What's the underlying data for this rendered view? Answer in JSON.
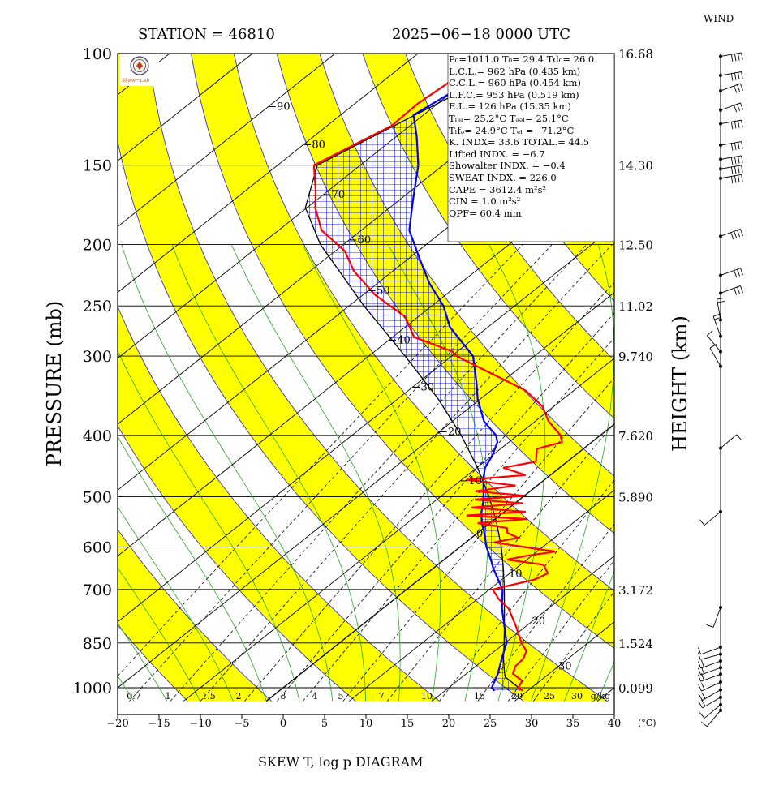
{
  "header": {
    "station": "STATION = 46810",
    "datetime": "2025−06−18 0000 UTC",
    "wind_label": "WIND",
    "bottom_title": "SKEW T, log p DIAGRAM"
  },
  "logo": {
    "text": "Skew−Lab",
    "icon": "station-seal-icon"
  },
  "info_lines": [
    {
      "id": "p0",
      "text": "P₀=1011.0 T₀= 29.4 Td₀= 26.0"
    },
    {
      "id": "lcl",
      "text": "L.C.L.= 962 hPa (0.435 km)"
    },
    {
      "id": "ccl",
      "text": "C.C.L.= 960 hPa (0.454 km)"
    },
    {
      "id": "lfc",
      "text": "L.F.C.= 953 hPa (0.519 km)"
    },
    {
      "id": "el",
      "text": "E.L.= 126 hPa (15.35 km)"
    },
    {
      "id": "tlcl",
      "text": "Tₗₔₗ= 25.2°C Tₔₔₗ= 25.1°C"
    },
    {
      "id": "tlfc",
      "text": "Tₗfₔ= 24.9°C  Tₑₗ =−71.2°C"
    },
    {
      "id": "kindx",
      "text": "K. INDX= 33.6  TOTAL.= 44.5"
    },
    {
      "id": "lifted",
      "text": "Lifted INDX. =  −6.7"
    },
    {
      "id": "showalter",
      "text": "Showalter INDX. =   −0.4"
    },
    {
      "id": "sweat",
      "text": "SWEAT INDX. =  226.0"
    },
    {
      "id": "cape",
      "text": "CAPE = 3612.4 m²s²"
    },
    {
      "id": "cin",
      "text": "CIN   =    1.0 m²s²"
    },
    {
      "id": "qpf",
      "text": "QPF= 60.4 mm"
    }
  ],
  "chart_data": {
    "type": "line",
    "title": "SKEW T, log p DIAGRAM",
    "ylabel": "PRESSURE (mb)",
    "ylabel_right": "HEIGHT (km)",
    "x_unit_label": "(°C)",
    "xlim": [
      -20,
      40
    ],
    "ylim_pressure": [
      1050,
      100
    ],
    "log_pressure_axis": true,
    "x_ticks": [
      -20,
      -15,
      -10,
      -5,
      0,
      5,
      10,
      15,
      20,
      25,
      30,
      35,
      40
    ],
    "pressure_ticks": [
      100,
      150,
      200,
      250,
      300,
      400,
      500,
      600,
      700,
      850,
      1000
    ],
    "height_ticks": [
      {
        "p": 100,
        "label": "16.68"
      },
      {
        "p": 150,
        "label": "14.30"
      },
      {
        "p": 200,
        "label": "12.50"
      },
      {
        "p": 250,
        "label": "11.02"
      },
      {
        "p": 300,
        "label": "9.740"
      },
      {
        "p": 400,
        "label": "7.620"
      },
      {
        "p": 500,
        "label": "5.890"
      },
      {
        "p": 700,
        "label": "3.172"
      },
      {
        "p": 850,
        "label": "1.524"
      },
      {
        "p": 1000,
        "label": "0.099"
      }
    ],
    "isotherm_labels": [
      {
        "t": -90,
        "p": 122
      },
      {
        "t": -80,
        "p": 140
      },
      {
        "t": -70,
        "p": 168
      },
      {
        "t": -60,
        "p": 198
      },
      {
        "t": -50,
        "p": 238
      },
      {
        "t": -40,
        "p": 285
      },
      {
        "t": -30,
        "p": 338
      },
      {
        "t": -20,
        "p": 397
      },
      {
        "t": -10,
        "p": 475
      },
      {
        "t": 0,
        "p": 575
      },
      {
        "t": 10,
        "p": 665
      },
      {
        "t": 20,
        "p": 790
      },
      {
        "t": 30,
        "p": 930
      }
    ],
    "mixing_ratio_labels": [
      "0.7",
      "1",
      "1.5",
      "2",
      "3",
      "4",
      "5",
      "7",
      "10",
      "15",
      "20",
      "25",
      "30",
      "g/kg"
    ],
    "mixing_ratio_values": [
      0.7,
      1,
      1.5,
      2,
      3,
      4,
      5,
      7,
      10,
      15,
      20,
      25,
      30
    ],
    "series": [
      {
        "name": "temperature",
        "color": "#ff0000",
        "points": [
          [
            1011,
            29.4
          ],
          [
            1000,
            28.4
          ],
          [
            975,
            27.8
          ],
          [
            950,
            25.6
          ],
          [
            925,
            24.8
          ],
          [
            900,
            24.6
          ],
          [
            875,
            23.8
          ],
          [
            850,
            22.0
          ],
          [
            800,
            18.8
          ],
          [
            750,
            15.2
          ],
          [
            725,
            12.6
          ],
          [
            700,
            10.4
          ],
          [
            690,
            11.8
          ],
          [
            675,
            14.0
          ],
          [
            660,
            14.6
          ],
          [
            640,
            12.8
          ],
          [
            628,
            7.6
          ],
          [
            620,
            9.2
          ],
          [
            610,
            12.2
          ],
          [
            600,
            7.8
          ],
          [
            590,
            3.4
          ],
          [
            580,
            5.6
          ],
          [
            570,
            3.6
          ],
          [
            560,
            2.8
          ],
          [
            550,
            -1.5
          ],
          [
            542,
            3.8
          ],
          [
            535,
            -4.0
          ],
          [
            528,
            2.6
          ],
          [
            520,
            -4.6
          ],
          [
            512,
            1.0
          ],
          [
            505,
            -5.4
          ],
          [
            498,
            0.0
          ],
          [
            490,
            -6.6
          ],
          [
            480,
            -2.6
          ],
          [
            470,
            -9.4
          ],
          [
            462,
            -3.0
          ],
          [
            450,
            -6.8
          ],
          [
            440,
            -3.8
          ],
          [
            420,
            -5.6
          ],
          [
            410,
            -3.6
          ],
          [
            400,
            -4.8
          ],
          [
            380,
            -8.4
          ],
          [
            360,
            -11.4
          ],
          [
            340,
            -15.8
          ],
          [
            320,
            -22.4
          ],
          [
            300,
            -29.4
          ],
          [
            295,
            -30.6
          ],
          [
            280,
            -37.4
          ],
          [
            260,
            -41.6
          ],
          [
            240,
            -48.6
          ],
          [
            220,
            -54.8
          ],
          [
            205,
            -58.8
          ],
          [
            190,
            -64.8
          ],
          [
            175,
            -69.0
          ],
          [
            165,
            -71.4
          ],
          [
            150,
            -75.6
          ],
          [
            140,
            -74.0
          ],
          [
            130,
            -72.2
          ],
          [
            120,
            -72.4
          ],
          [
            110,
            -71.8
          ],
          [
            100,
            -67.5
          ]
        ]
      },
      {
        "name": "dewpoint",
        "color": "#0000ff",
        "points": [
          [
            1011,
            26.0
          ],
          [
            1000,
            25.2
          ],
          [
            950,
            23.8
          ],
          [
            900,
            22.0
          ],
          [
            850,
            20.2
          ],
          [
            800,
            17.4
          ],
          [
            750,
            14.4
          ],
          [
            700,
            11.6
          ],
          [
            650,
            7.4
          ],
          [
            630,
            5.8
          ],
          [
            600,
            3.2
          ],
          [
            570,
            0.8
          ],
          [
            550,
            -1.0
          ],
          [
            530,
            -2.6
          ],
          [
            510,
            -4.0
          ],
          [
            490,
            -5.6
          ],
          [
            470,
            -7.4
          ],
          [
            450,
            -9.0
          ],
          [
            430,
            -10.0
          ],
          [
            410,
            -11.4
          ],
          [
            400,
            -12.6
          ],
          [
            380,
            -16.2
          ],
          [
            350,
            -20.4
          ],
          [
            330,
            -23.0
          ],
          [
            300,
            -27.4
          ],
          [
            270,
            -34.6
          ],
          [
            250,
            -38.6
          ],
          [
            230,
            -43.8
          ],
          [
            210,
            -48.8
          ],
          [
            190,
            -54.2
          ],
          [
            170,
            -58.4
          ],
          [
            150,
            -63.0
          ],
          [
            135,
            -67.6
          ],
          [
            125,
            -71.2
          ],
          [
            115,
            -70.0
          ],
          [
            100,
            -67.4
          ]
        ]
      },
      {
        "name": "parcel",
        "color": "#000000",
        "points": [
          [
            1011,
            29.4
          ],
          [
            962,
            25.2
          ],
          [
            950,
            24.6
          ],
          [
            900,
            22.2
          ],
          [
            850,
            19.9
          ],
          [
            800,
            17.4
          ],
          [
            750,
            14.7
          ],
          [
            700,
            11.8
          ],
          [
            650,
            8.6
          ],
          [
            600,
            5.0
          ],
          [
            550,
            0.8
          ],
          [
            500,
            -4.1
          ],
          [
            450,
            -9.9
          ],
          [
            400,
            -16.8
          ],
          [
            350,
            -25.2
          ],
          [
            300,
            -35.6
          ],
          [
            250,
            -48.2
          ],
          [
            200,
            -62.8
          ],
          [
            175,
            -70.2
          ],
          [
            150,
            -75.2
          ],
          [
            126,
            -71.2
          ],
          [
            110,
            -68.0
          ],
          [
            100,
            -66.6
          ]
        ]
      }
    ],
    "wind_barbs": [
      {
        "p": 1005,
        "dir": 220,
        "speed_kt": 10
      },
      {
        "p": 985,
        "dir": 230,
        "speed_kt": 10
      },
      {
        "p": 960,
        "dir": 240,
        "speed_kt": 15
      },
      {
        "p": 935,
        "dir": 240,
        "speed_kt": 15
      },
      {
        "p": 910,
        "dir": 245,
        "speed_kt": 15
      },
      {
        "p": 885,
        "dir": 250,
        "speed_kt": 15
      },
      {
        "p": 865,
        "dir": 250,
        "speed_kt": 15
      },
      {
        "p": 845,
        "dir": 250,
        "speed_kt": 15
      },
      {
        "p": 825,
        "dir": 255,
        "speed_kt": 10
      },
      {
        "p": 805,
        "dir": 250,
        "speed_kt": 10
      },
      {
        "p": 700,
        "dir": 200,
        "speed_kt": 10
      },
      {
        "p": 500,
        "dir": 230,
        "speed_kt": 10
      },
      {
        "p": 400,
        "dir": 50,
        "speed_kt": 10
      },
      {
        "p": 300,
        "dir": 330,
        "speed_kt": 10
      },
      {
        "p": 285,
        "dir": 320,
        "speed_kt": 10
      },
      {
        "p": 270,
        "dir": 340,
        "speed_kt": 15
      },
      {
        "p": 255,
        "dir": 350,
        "speed_kt": 15
      },
      {
        "p": 232,
        "dir": 70,
        "speed_kt": 30
      },
      {
        "p": 218,
        "dir": 70,
        "speed_kt": 30
      },
      {
        "p": 190,
        "dir": 70,
        "speed_kt": 35
      },
      {
        "p": 155,
        "dir": 80,
        "speed_kt": 40
      },
      {
        "p": 150,
        "dir": 80,
        "speed_kt": 40
      },
      {
        "p": 145,
        "dir": 80,
        "speed_kt": 40
      },
      {
        "p": 138,
        "dir": 80,
        "speed_kt": 40
      },
      {
        "p": 128,
        "dir": 80,
        "speed_kt": 40
      },
      {
        "p": 122,
        "dir": 70,
        "speed_kt": 30
      },
      {
        "p": 114,
        "dir": 70,
        "speed_kt": 30
      },
      {
        "p": 108,
        "dir": 80,
        "speed_kt": 40
      },
      {
        "p": 101,
        "dir": 80,
        "speed_kt": 40
      }
    ]
  }
}
